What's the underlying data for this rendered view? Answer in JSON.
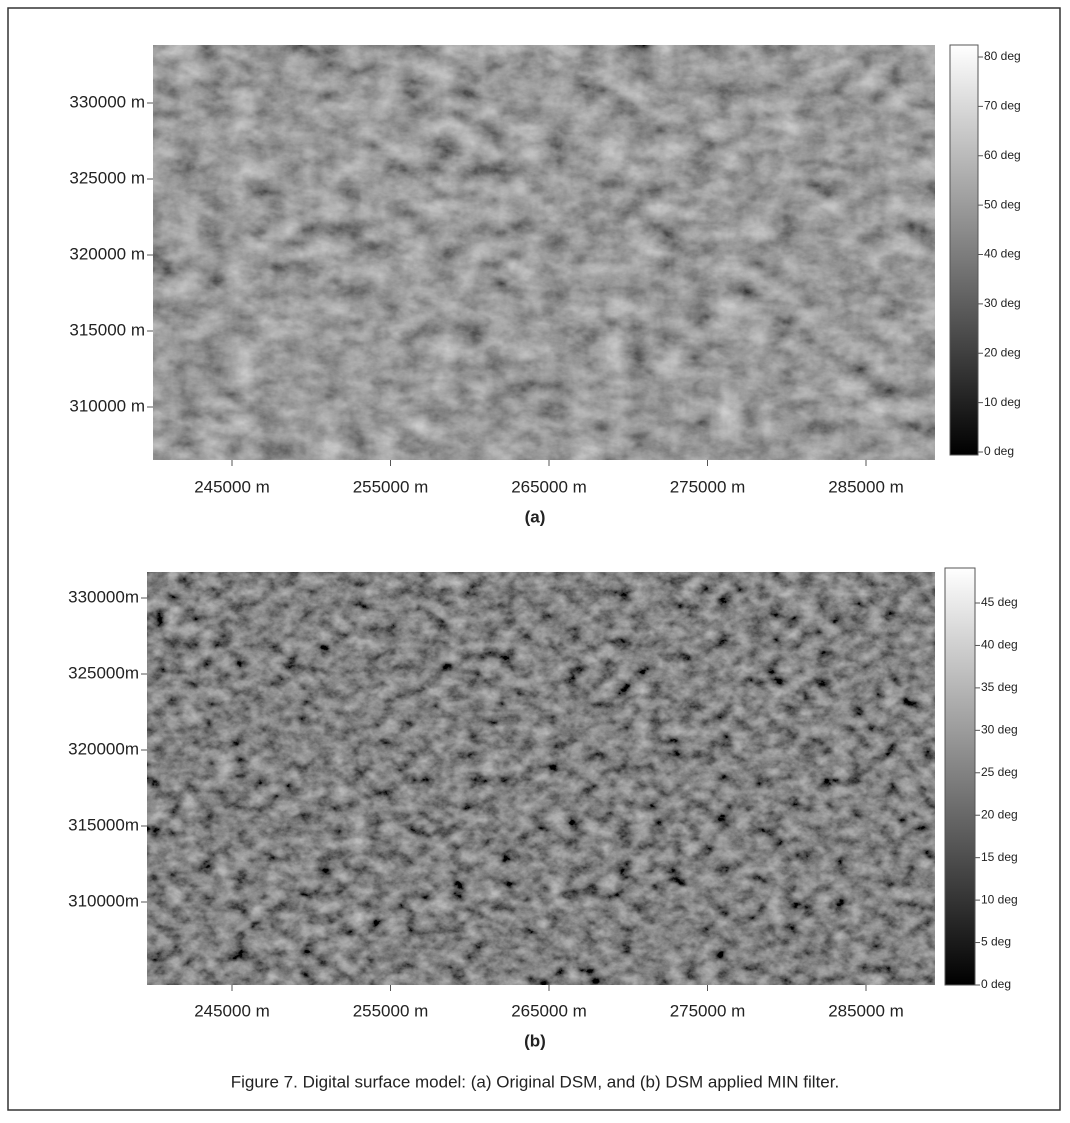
{
  "panels": [
    {
      "yticks": [
        "330000 m",
        "325000 m",
        "320000 m",
        "315000 m",
        "310000 m"
      ],
      "xticks": [
        "245000 m",
        "255000 m",
        "265000 m",
        "275000 m",
        "285000 m"
      ],
      "colorbar": [
        "80 deg",
        "70 deg",
        "60 deg",
        "50 deg",
        "40 deg",
        "30 deg",
        "20 deg",
        "10 deg",
        "0 deg"
      ],
      "label": "(a)"
    },
    {
      "yticks": [
        "330000m",
        "325000m",
        "320000m",
        "315000m",
        "310000m"
      ],
      "xticks": [
        "245000 m",
        "255000 m",
        "265000 m",
        "275000 m",
        "285000 m"
      ],
      "colorbar": [
        "45 deg",
        "40 deg",
        "35 deg",
        "30 deg",
        "25 deg",
        "20 deg",
        "15 deg",
        "10 deg",
        "5 deg",
        "0 deg"
      ],
      "label": "(b)"
    }
  ],
  "caption": "Figure 7. Digital surface model: (a) Original DSM, and (b) DSM applied MIN filter."
}
